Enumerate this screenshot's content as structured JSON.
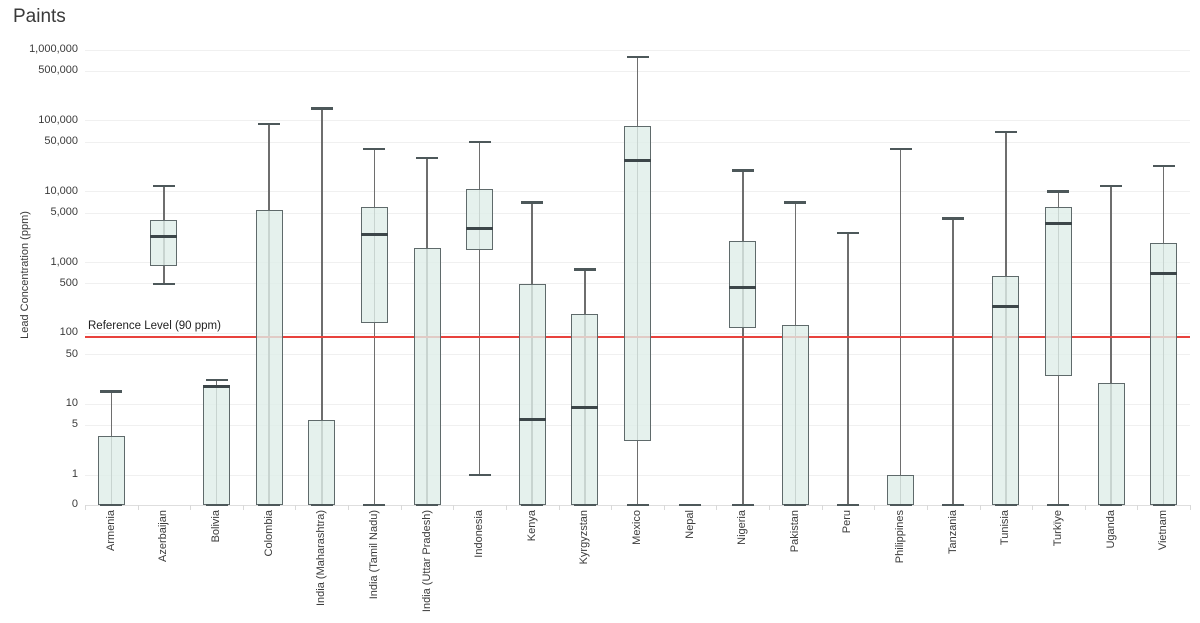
{
  "title": "Paints",
  "colors": {
    "box_fill": "rgba(222,238,232,0.8)",
    "box_border": "#5f6a6b",
    "median": "#3c4649",
    "whisker": "#6e6e6e",
    "cap": "#4d585a",
    "grid": "#f0f0f0",
    "axis_line": "#dedede",
    "reference": "#e8423d",
    "text": "#3a3a3a"
  },
  "chart_data": {
    "type": "box",
    "title": "Paints",
    "xlabel": "",
    "ylabel": "Lead Concentration (ppm)",
    "yscale": "log",
    "ylim": [
      0,
      1000000
    ],
    "grid": true,
    "legend": "none",
    "y_ticks": [
      {
        "label": "1,000,000",
        "value": 1000000
      },
      {
        "label": "500,000",
        "value": 500000
      },
      {
        "label": "100,000",
        "value": 100000
      },
      {
        "label": "50,000",
        "value": 50000
      },
      {
        "label": "10,000",
        "value": 10000
      },
      {
        "label": "5,000",
        "value": 5000
      },
      {
        "label": "1,000",
        "value": 1000
      },
      {
        "label": "500",
        "value": 500
      },
      {
        "label": "100",
        "value": 100
      },
      {
        "label": "50",
        "value": 50
      },
      {
        "label": "10",
        "value": 10
      },
      {
        "label": "5",
        "value": 5
      },
      {
        "label": "1",
        "value": 1
      },
      {
        "label": "0",
        "value": 0
      }
    ],
    "reference_line": {
      "label": "Reference Level (90 ppm)",
      "value": 90,
      "color": "#e8423d"
    },
    "categories": [
      "Armenia",
      "Azerbaijan",
      "Bolivia",
      "Colombia",
      "India (Maharashtra)",
      "India (Tamil Nadu)",
      "India (Uttar Pradesh)",
      "Indonesia",
      "Kenya",
      "Kyrgyzstan",
      "Mexico",
      "Nepal",
      "Nigeria",
      "Pakistan",
      "Peru",
      "Philippines",
      "Tanzania",
      "Tunisia",
      "Turkïye",
      "Uganda",
      "Vietnam"
    ],
    "boxes": [
      {
        "label": "Armenia",
        "whisker_low": 0,
        "q1": 0,
        "median": null,
        "q3": 3.5,
        "whisker_high": 15
      },
      {
        "label": "Azerbaijan",
        "whisker_low": 500,
        "q1": 900,
        "median": 2300,
        "q3": 4000,
        "whisker_high": 12000
      },
      {
        "label": "Bolivia",
        "whisker_low": 0,
        "q1": 0,
        "median": 18,
        "q3": 18,
        "whisker_high": 22
      },
      {
        "label": "Colombia",
        "whisker_low": 0,
        "q1": 0,
        "median": null,
        "q3": 5500,
        "whisker_high": 90000
      },
      {
        "label": "India (Maharashtra)",
        "whisker_low": 0,
        "q1": 0,
        "median": null,
        "q3": 6,
        "whisker_high": 150000
      },
      {
        "label": "India (Tamil Nadu)",
        "whisker_low": 0,
        "q1": 140,
        "median": 2500,
        "q3": 6000,
        "whisker_high": 40000
      },
      {
        "label": "India (Uttar Pradesh)",
        "whisker_low": 0,
        "q1": 0,
        "median": null,
        "q3": 1600,
        "whisker_high": 30000
      },
      {
        "label": "Indonesia",
        "whisker_low": 1,
        "q1": 1500,
        "median": 3000,
        "q3": 11000,
        "whisker_high": 50000
      },
      {
        "label": "Kenya",
        "whisker_low": 0,
        "q1": 0,
        "median": 6,
        "q3": 500,
        "whisker_high": 7000
      },
      {
        "label": "Kyrgyzstan",
        "whisker_low": 0,
        "q1": 0,
        "median": 9,
        "q3": 190,
        "whisker_high": 800
      },
      {
        "label": "Mexico",
        "whisker_low": 0,
        "q1": 3,
        "median": 28000,
        "q3": 85000,
        "whisker_high": 800000
      },
      {
        "label": "Nepal",
        "whisker_low": 0,
        "q1": 0,
        "median": 0,
        "q3": 0,
        "whisker_high": 0
      },
      {
        "label": "Nigeria",
        "whisker_low": 0,
        "q1": 120,
        "median": 450,
        "q3": 2000,
        "whisker_high": 20000
      },
      {
        "label": "Pakistan",
        "whisker_low": 0,
        "q1": 0,
        "median": null,
        "q3": 130,
        "whisker_high": 7000
      },
      {
        "label": "Peru",
        "whisker_low": 0,
        "q1": 0,
        "median": 0,
        "q3": 0,
        "whisker_high": 2600
      },
      {
        "label": "Philippines",
        "whisker_low": 0,
        "q1": 0,
        "median": null,
        "q3": 1,
        "whisker_high": 40000
      },
      {
        "label": "Tanzania",
        "whisker_low": 0,
        "q1": 0,
        "median": 0,
        "q3": 0,
        "whisker_high": 4200
      },
      {
        "label": "Tunisia",
        "whisker_low": 0,
        "q1": 0,
        "median": 240,
        "q3": 650,
        "whisker_high": 70000
      },
      {
        "label": "Turkïye",
        "whisker_low": 0,
        "q1": 25,
        "median": 3500,
        "q3": 6000,
        "whisker_high": 10000
      },
      {
        "label": "Uganda",
        "whisker_low": 0,
        "q1": 0,
        "median": null,
        "q3": 20,
        "whisker_high": 12000
      },
      {
        "label": "Vietnam",
        "whisker_low": 0,
        "q1": 0,
        "median": 700,
        "q3": 1900,
        "whisker_high": 23000
      }
    ]
  }
}
